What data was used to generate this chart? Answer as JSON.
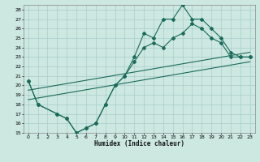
{
  "xlabel": "Humidex (Indice chaleur)",
  "ylabel": "",
  "bg_color": "#cce8e0",
  "grid_color": "#aacccc",
  "line_color": "#1a6b5a",
  "xlim": [
    -0.5,
    23.5
  ],
  "ylim": [
    15,
    28.5
  ],
  "yticks": [
    15,
    16,
    17,
    18,
    19,
    20,
    21,
    22,
    23,
    24,
    25,
    26,
    27,
    28
  ],
  "xticks": [
    0,
    1,
    2,
    3,
    4,
    5,
    6,
    7,
    8,
    9,
    10,
    11,
    12,
    13,
    14,
    15,
    16,
    17,
    18,
    19,
    20,
    21,
    22,
    23
  ],
  "line1_x": [
    0,
    1,
    3,
    4,
    5,
    6,
    7,
    8,
    9,
    10,
    11,
    12,
    13,
    14,
    15,
    16,
    17,
    18,
    19,
    20,
    21,
    22,
    23
  ],
  "line1_y": [
    20.5,
    18,
    17,
    16.5,
    15,
    15.5,
    16,
    18,
    20,
    21,
    23,
    25.5,
    25,
    27,
    27,
    28.5,
    27,
    27,
    26,
    25,
    23.5,
    23,
    23
  ],
  "line2_x": [
    0,
    1,
    3,
    4,
    5,
    6,
    7,
    8,
    9,
    10,
    11,
    12,
    13,
    14,
    15,
    16,
    17,
    18,
    19,
    20,
    21,
    22,
    23
  ],
  "line2_y": [
    20.5,
    18,
    17,
    16.5,
    15,
    15.5,
    16,
    18,
    20,
    21,
    22.5,
    24,
    24.5,
    24,
    25,
    25.5,
    26.5,
    26,
    25,
    24.5,
    23,
    23,
    23
  ],
  "line3_x": [
    0,
    23
  ],
  "line3_y": [
    19.5,
    23.5
  ],
  "line4_x": [
    0,
    23
  ],
  "line4_y": [
    18.5,
    22.5
  ]
}
